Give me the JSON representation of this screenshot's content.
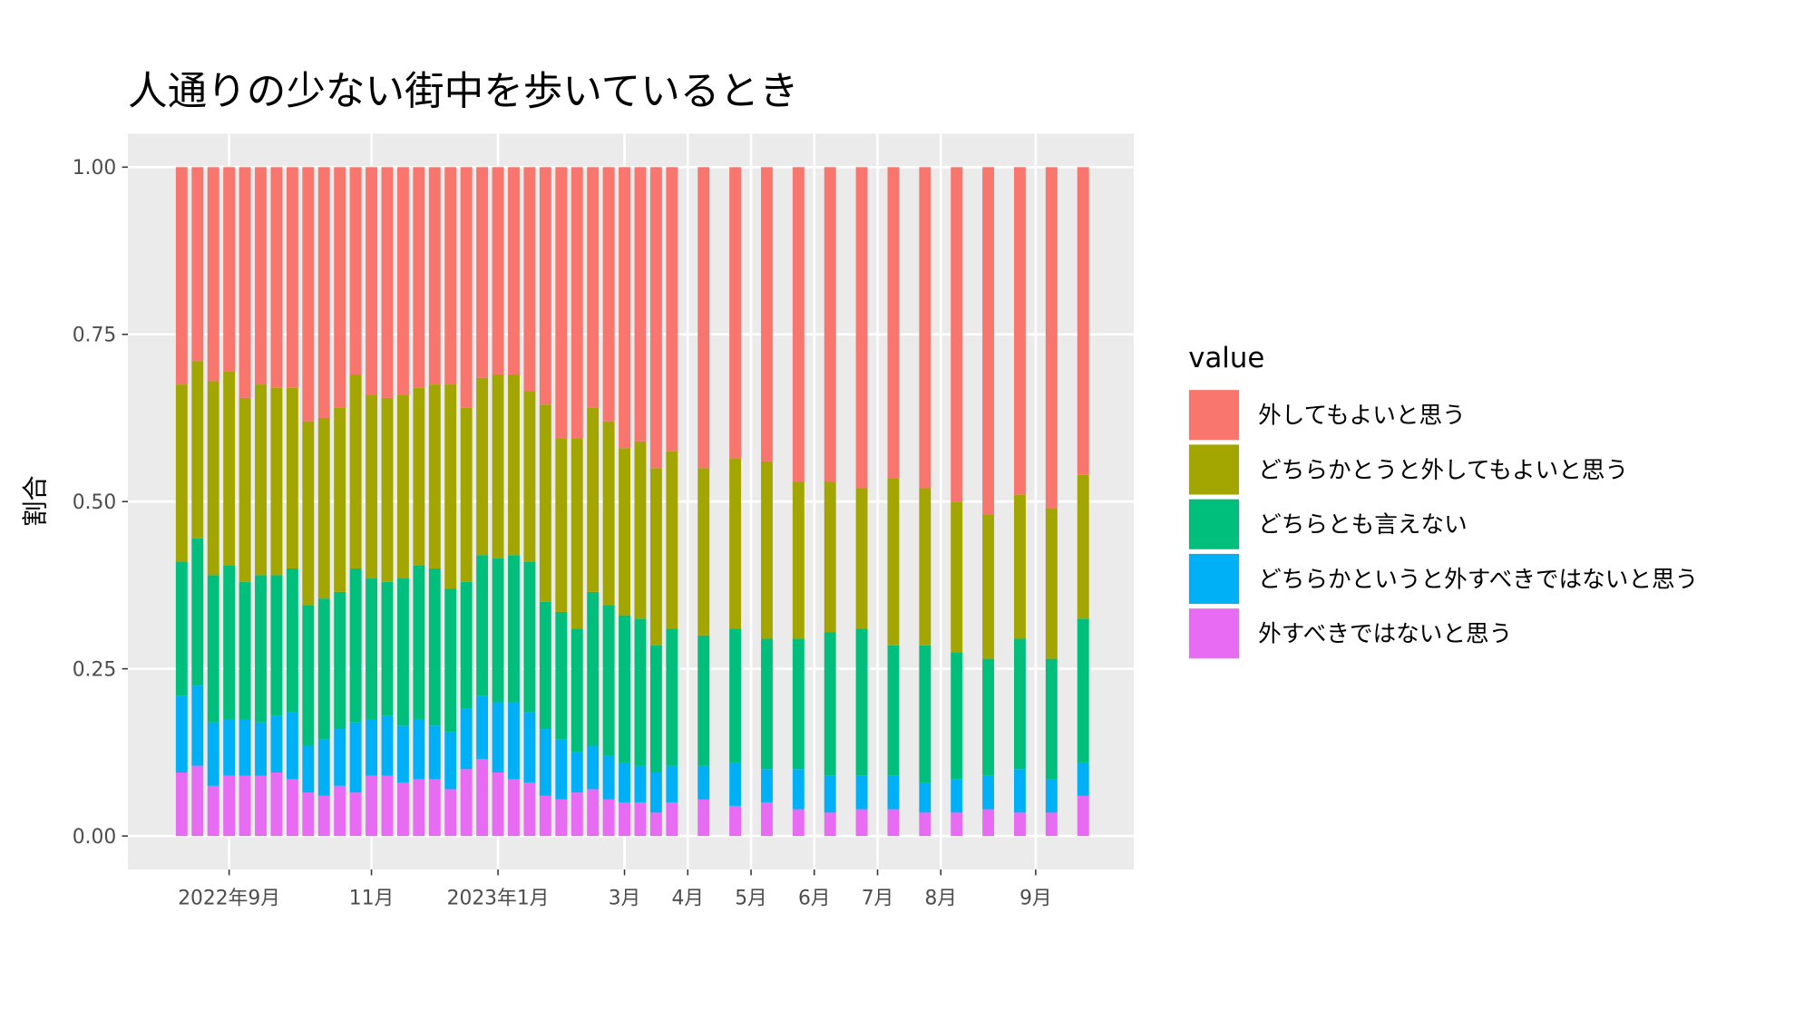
{
  "chart_data": {
    "type": "bar",
    "stacked": true,
    "title": "人通りの少ない街中を歩いているとき",
    "y_label": "割合",
    "legend_title": "value",
    "x": [
      -3,
      -2,
      -1,
      0,
      1,
      2,
      3,
      4,
      5,
      6,
      7,
      8,
      9,
      10,
      11,
      12,
      13,
      14,
      15,
      16,
      17,
      18,
      19,
      20,
      21,
      22,
      23,
      24,
      25,
      26,
      27,
      28,
      30,
      32,
      34,
      36,
      38,
      40,
      42,
      44,
      46,
      48,
      50,
      52,
      54
    ],
    "xlim": [
      -6.4,
      57.2
    ],
    "xticks": [
      {
        "value": 0,
        "label": "2022年9月"
      },
      {
        "value": 9,
        "label": "11月"
      },
      {
        "value": 17,
        "label": "2023年1月"
      },
      {
        "value": 25,
        "label": "3月"
      },
      {
        "value": 29,
        "label": "4月"
      },
      {
        "value": 33,
        "label": "5月"
      },
      {
        "value": 37,
        "label": "6月"
      },
      {
        "value": 41,
        "label": "7月"
      },
      {
        "value": 45,
        "label": "8月"
      },
      {
        "value": 51,
        "label": "9月"
      }
    ],
    "ylim": [
      -0.05,
      1.05
    ],
    "yticks": [
      {
        "value": 0,
        "label": "0.00"
      },
      {
        "value": 0.25,
        "label": "0.25"
      },
      {
        "value": 0.5,
        "label": "0.50"
      },
      {
        "value": 0.75,
        "label": "0.75"
      },
      {
        "value": 1,
        "label": "1.00"
      }
    ],
    "grid": true,
    "series": [
      {
        "name": "外してもよいと思う",
        "color": "#F8766D",
        "values": [
          0.325,
          0.29,
          0.32,
          0.305,
          0.345,
          0.325,
          0.33,
          0.33,
          0.38,
          0.375,
          0.36,
          0.31,
          0.34,
          0.345,
          0.34,
          0.33,
          0.325,
          0.325,
          0.36,
          0.315,
          0.31,
          0.31,
          0.335,
          0.355,
          0.405,
          0.405,
          0.36,
          0.38,
          0.42,
          0.41,
          0.45,
          0.425,
          0.45,
          0.435,
          0.44,
          0.47,
          0.47,
          0.48,
          0.465,
          0.48,
          0.5,
          0.52,
          0.49,
          0.51,
          0.46
        ]
      },
      {
        "name": "どちらかとうと外してもよいと思う",
        "color": "#A3A500",
        "values": [
          0.265,
          0.265,
          0.29,
          0.29,
          0.275,
          0.285,
          0.28,
          0.27,
          0.275,
          0.27,
          0.275,
          0.29,
          0.275,
          0.275,
          0.275,
          0.265,
          0.275,
          0.305,
          0.26,
          0.265,
          0.275,
          0.27,
          0.255,
          0.295,
          0.26,
          0.285,
          0.275,
          0.275,
          0.25,
          0.265,
          0.265,
          0.265,
          0.25,
          0.255,
          0.265,
          0.235,
          0.225,
          0.21,
          0.25,
          0.235,
          0.225,
          0.215,
          0.215,
          0.225,
          0.215
        ]
      },
      {
        "name": "どちらとも言えない",
        "color": "#00BF7D",
        "values": [
          0.2,
          0.22,
          0.22,
          0.23,
          0.205,
          0.22,
          0.21,
          0.215,
          0.21,
          0.21,
          0.205,
          0.23,
          0.21,
          0.2,
          0.22,
          0.23,
          0.235,
          0.215,
          0.19,
          0.21,
          0.215,
          0.22,
          0.225,
          0.19,
          0.19,
          0.185,
          0.23,
          0.225,
          0.22,
          0.22,
          0.19,
          0.205,
          0.195,
          0.2,
          0.195,
          0.195,
          0.215,
          0.22,
          0.195,
          0.205,
          0.19,
          0.175,
          0.195,
          0.18,
          0.215
        ]
      },
      {
        "name": "どちらかというと外すべきではないと思う",
        "color": "#00B0F6",
        "values": [
          0.115,
          0.12,
          0.095,
          0.085,
          0.085,
          0.08,
          0.085,
          0.1,
          0.07,
          0.085,
          0.085,
          0.105,
          0.085,
          0.09,
          0.085,
          0.09,
          0.08,
          0.085,
          0.09,
          0.095,
          0.105,
          0.115,
          0.105,
          0.1,
          0.09,
          0.06,
          0.065,
          0.065,
          0.06,
          0.055,
          0.06,
          0.055,
          0.05,
          0.065,
          0.05,
          0.06,
          0.055,
          0.05,
          0.05,
          0.045,
          0.05,
          0.05,
          0.065,
          0.05,
          0.05
        ]
      },
      {
        "name": "外すべきではないと思う",
        "color": "#E76BF3",
        "values": [
          0.095,
          0.105,
          0.075,
          0.09,
          0.09,
          0.09,
          0.095,
          0.085,
          0.065,
          0.06,
          0.075,
          0.065,
          0.09,
          0.09,
          0.08,
          0.085,
          0.085,
          0.07,
          0.1,
          0.115,
          0.095,
          0.085,
          0.08,
          0.06,
          0.055,
          0.065,
          0.07,
          0.055,
          0.05,
          0.05,
          0.035,
          0.05,
          0.055,
          0.045,
          0.05,
          0.04,
          0.035,
          0.04,
          0.04,
          0.035,
          0.035,
          0.04,
          0.035,
          0.035,
          0.06
        ]
      }
    ]
  }
}
